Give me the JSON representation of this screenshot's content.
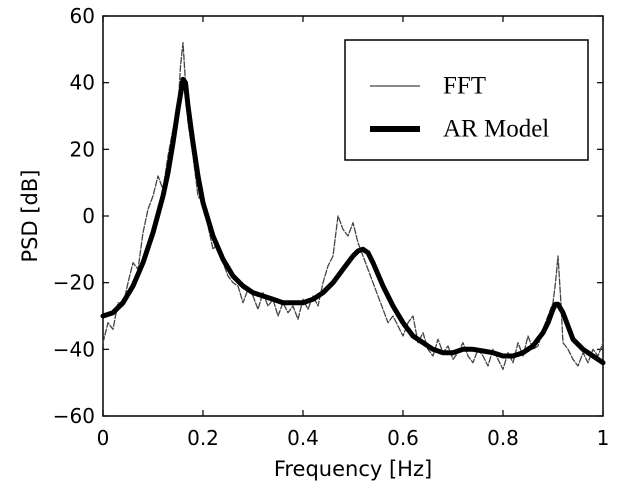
{
  "chart_data": {
    "type": "line",
    "title": "",
    "xlabel": "Frequency [Hz]",
    "ylabel": "PSD [dB]",
    "xlim": [
      0,
      1
    ],
    "ylim": [
      -60,
      60
    ],
    "xticks": [
      0,
      0.2,
      0.4,
      0.6,
      0.8,
      1
    ],
    "xtick_labels": [
      "0",
      "0.2",
      "0.4",
      "0.6",
      "0.8",
      "1"
    ],
    "yticks": [
      -60,
      -40,
      -20,
      0,
      20,
      40,
      60
    ],
    "ytick_labels": [
      "−60",
      "−40",
      "−20",
      "0",
      "20",
      "40",
      "60"
    ],
    "grid": false,
    "legend_position": "top-right",
    "series": [
      {
        "name": "FFT",
        "style": "thin",
        "color": "#444444",
        "x": [
          0.0,
          0.01,
          0.02,
          0.03,
          0.04,
          0.05,
          0.06,
          0.07,
          0.08,
          0.09,
          0.1,
          0.11,
          0.12,
          0.13,
          0.14,
          0.15,
          0.155,
          0.16,
          0.165,
          0.17,
          0.18,
          0.19,
          0.2,
          0.21,
          0.22,
          0.23,
          0.24,
          0.25,
          0.26,
          0.27,
          0.28,
          0.29,
          0.3,
          0.31,
          0.32,
          0.33,
          0.34,
          0.35,
          0.36,
          0.37,
          0.38,
          0.39,
          0.4,
          0.41,
          0.42,
          0.43,
          0.44,
          0.45,
          0.46,
          0.47,
          0.48,
          0.49,
          0.5,
          0.51,
          0.52,
          0.53,
          0.54,
          0.55,
          0.56,
          0.57,
          0.58,
          0.59,
          0.6,
          0.61,
          0.62,
          0.63,
          0.64,
          0.65,
          0.66,
          0.67,
          0.68,
          0.69,
          0.7,
          0.71,
          0.72,
          0.73,
          0.74,
          0.75,
          0.76,
          0.77,
          0.78,
          0.79,
          0.8,
          0.81,
          0.82,
          0.83,
          0.84,
          0.85,
          0.86,
          0.87,
          0.88,
          0.89,
          0.9,
          0.905,
          0.91,
          0.915,
          0.92,
          0.93,
          0.94,
          0.95,
          0.96,
          0.97,
          0.98,
          0.99,
          1.0
        ],
        "values": [
          -38,
          -32,
          -34,
          -26,
          -27,
          -20,
          -14,
          -16,
          -5,
          2,
          6,
          12,
          8,
          18,
          26,
          32,
          45,
          52,
          40,
          28,
          18,
          6,
          4,
          -3,
          -10,
          -8,
          -14,
          -18,
          -20,
          -21,
          -26,
          -22,
          -24,
          -28,
          -23,
          -27,
          -25,
          -30,
          -26,
          -29,
          -27,
          -31,
          -25,
          -28,
          -24,
          -27,
          -20,
          -15,
          -12,
          0,
          -4,
          -6,
          -2,
          -8,
          -12,
          -16,
          -20,
          -24,
          -28,
          -32,
          -30,
          -33,
          -36,
          -32,
          -30,
          -38,
          -35,
          -40,
          -42,
          -37,
          -41,
          -39,
          -43,
          -41,
          -38,
          -42,
          -44,
          -40,
          -42,
          -45,
          -40,
          -43,
          -46,
          -41,
          -44,
          -38,
          -42,
          -36,
          -40,
          -39,
          -34,
          -30,
          -26,
          -20,
          -12,
          -24,
          -38,
          -40,
          -43,
          -45,
          -41,
          -44,
          -40,
          -42,
          -38
        ]
      },
      {
        "name": "AR Model",
        "style": "thick",
        "color": "#000000",
        "x": [
          0.0,
          0.02,
          0.04,
          0.06,
          0.08,
          0.1,
          0.12,
          0.13,
          0.14,
          0.15,
          0.16,
          0.165,
          0.17,
          0.18,
          0.19,
          0.2,
          0.22,
          0.24,
          0.26,
          0.28,
          0.3,
          0.32,
          0.34,
          0.36,
          0.38,
          0.4,
          0.42,
          0.44,
          0.46,
          0.48,
          0.5,
          0.51,
          0.52,
          0.53,
          0.54,
          0.56,
          0.58,
          0.6,
          0.62,
          0.64,
          0.66,
          0.68,
          0.7,
          0.72,
          0.74,
          0.76,
          0.78,
          0.8,
          0.82,
          0.84,
          0.86,
          0.87,
          0.88,
          0.89,
          0.9,
          0.905,
          0.91,
          0.92,
          0.93,
          0.94,
          0.96,
          0.98,
          1.0
        ],
        "values": [
          -30,
          -29,
          -26,
          -21,
          -14,
          -5,
          6,
          13,
          22,
          32,
          41,
          40,
          33,
          22,
          12,
          4,
          -6,
          -13,
          -18,
          -21,
          -23,
          -24,
          -25,
          -26,
          -26,
          -26,
          -25,
          -23,
          -20,
          -16,
          -12,
          -10.5,
          -10,
          -11,
          -14,
          -21,
          -27,
          -32,
          -36,
          -38,
          -40,
          -41,
          -41,
          -40,
          -40,
          -40.5,
          -41,
          -42,
          -42,
          -41,
          -39,
          -37,
          -35,
          -32,
          -28,
          -26.5,
          -26.5,
          -29,
          -33,
          -37,
          -40,
          -42,
          -44
        ]
      }
    ]
  }
}
